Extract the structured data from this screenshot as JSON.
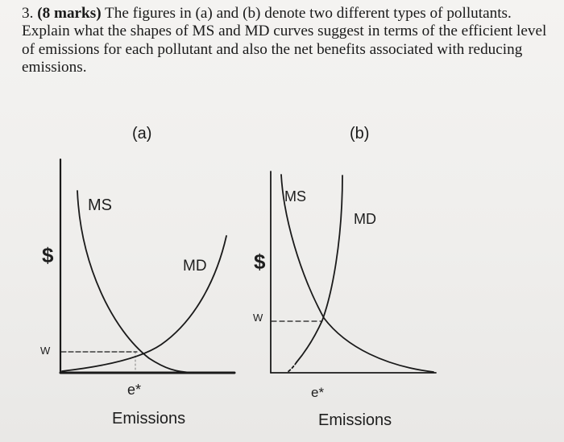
{
  "question": {
    "number": "3.",
    "marks": "(8 marks)",
    "text": "The figures in (a) and (b) denote two different types of pollutants. Explain what the shapes of MS and MD curves suggest in terms of the efficient level of emissions for each pollutant and also the net benefits associated with reducing emissions."
  },
  "figures": {
    "a": {
      "panel_label": "(a)",
      "ms_label": "MS",
      "md_label": "MD",
      "y_label": "$",
      "w_label": "W",
      "e_label": "e*",
      "x_label": "Emissions"
    },
    "b": {
      "panel_label": "(b)",
      "ms_label": "MS",
      "md_label": "MD",
      "y_label": "$",
      "w_label": "W",
      "e_label": "e*",
      "x_label": "Emissions"
    }
  },
  "colors": {
    "ink": "#1a1a1a",
    "paper": "#f1f0ee"
  }
}
